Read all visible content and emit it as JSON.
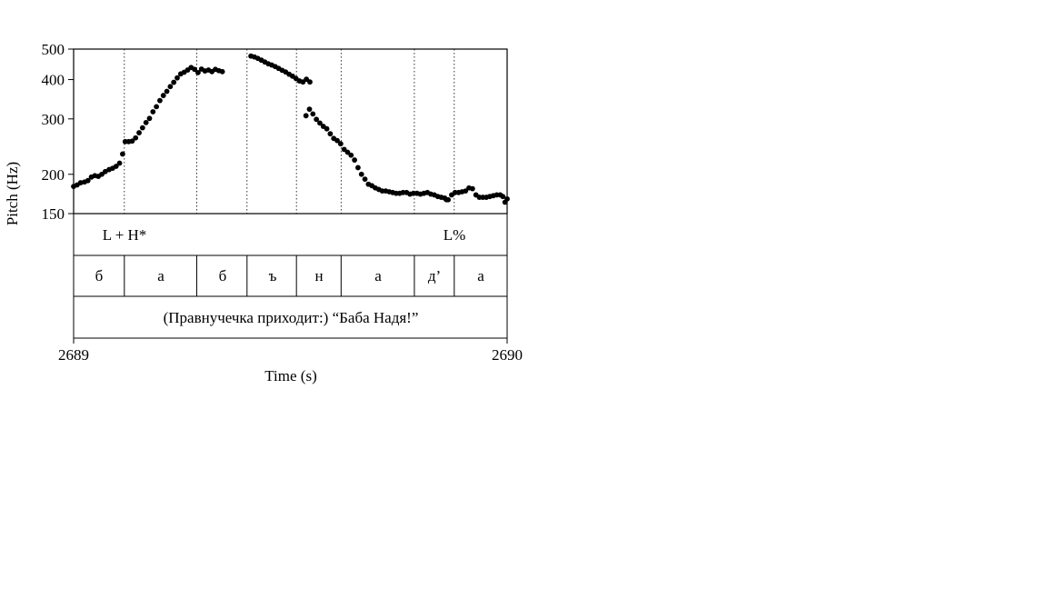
{
  "chart_data": {
    "type": "scatter",
    "xlabel": "Time (s)",
    "ylabel": "Pitch (Hz)",
    "xlim": [
      2689,
      2690
    ],
    "ylim": [
      150,
      500
    ],
    "y_scale": "log",
    "x_ticks": [
      "2689",
      "2690"
    ],
    "y_ticks": [
      150,
      200,
      300,
      400,
      500
    ],
    "y_tick_labels": [
      "150",
      "200",
      "300",
      "400",
      "500"
    ],
    "segment_boundaries": [
      2689.117,
      2689.284,
      2689.4,
      2689.514,
      2689.617,
      2689.786,
      2689.878
    ],
    "tiers": {
      "tones": [
        {
          "label": "L + H*",
          "t": 2689.117
        },
        {
          "label": "L%",
          "t": 2689.878
        }
      ],
      "segments": [
        {
          "label": "б",
          "start": 2689.0,
          "end": 2689.117
        },
        {
          "label": "а",
          "start": 2689.117,
          "end": 2689.284
        },
        {
          "label": "б",
          "start": 2689.284,
          "end": 2689.4
        },
        {
          "label": "ъ",
          "start": 2689.4,
          "end": 2689.514
        },
        {
          "label": "н",
          "start": 2689.514,
          "end": 2689.617
        },
        {
          "label": "а",
          "start": 2689.617,
          "end": 2689.786
        },
        {
          "label": "д’",
          "start": 2689.786,
          "end": 2689.878
        },
        {
          "label": "а",
          "start": 2689.878,
          "end": 2690.0
        }
      ],
      "sentence": "(Правнучечка приходит:) “Баба Надя!”"
    },
    "series": [
      {
        "points": [
          [
            2689.0,
            183
          ],
          [
            2689.008,
            185
          ],
          [
            2689.016,
            188
          ],
          [
            2689.025,
            189
          ],
          [
            2689.033,
            191
          ],
          [
            2689.041,
            196
          ],
          [
            2689.049,
            198
          ],
          [
            2689.057,
            197
          ],
          [
            2689.065,
            200
          ],
          [
            2689.073,
            204
          ],
          [
            2689.082,
            207
          ],
          [
            2689.09,
            209
          ],
          [
            2689.098,
            212
          ],
          [
            2689.106,
            217
          ],
          [
            2689.113,
            232
          ],
          [
            2689.119,
            254
          ],
          [
            2689.127,
            254
          ],
          [
            2689.135,
            255
          ],
          [
            2689.143,
            261
          ],
          [
            2689.151,
            271
          ],
          [
            2689.159,
            281
          ],
          [
            2689.167,
            292
          ],
          [
            2689.175,
            301
          ],
          [
            2689.183,
            316
          ],
          [
            2689.191,
            328
          ],
          [
            2689.199,
            343
          ],
          [
            2689.207,
            356
          ],
          [
            2689.215,
            367
          ],
          [
            2689.223,
            380
          ],
          [
            2689.231,
            392
          ],
          [
            2689.239,
            405
          ],
          [
            2689.247,
            417
          ],
          [
            2689.255,
            422
          ],
          [
            2689.263,
            429
          ],
          [
            2689.271,
            437
          ],
          [
            2689.279,
            431
          ],
          [
            2689.287,
            421
          ],
          [
            2689.295,
            432
          ],
          [
            2689.303,
            426
          ],
          [
            2689.311,
            429
          ],
          [
            2689.319,
            424
          ],
          [
            2689.327,
            431
          ],
          [
            2689.335,
            427
          ],
          [
            2689.343,
            424
          ],
          [
            2689.409,
            475
          ],
          [
            2689.417,
            472
          ],
          [
            2689.425,
            467
          ],
          [
            2689.433,
            461
          ],
          [
            2689.441,
            455
          ],
          [
            2689.449,
            449
          ],
          [
            2689.457,
            445
          ],
          [
            2689.465,
            440
          ],
          [
            2689.473,
            434
          ],
          [
            2689.481,
            428
          ],
          [
            2689.489,
            423
          ],
          [
            2689.497,
            416
          ],
          [
            2689.505,
            410
          ],
          [
            2689.513,
            403
          ],
          [
            2689.521,
            396
          ],
          [
            2689.529,
            393
          ],
          [
            2689.537,
            401
          ],
          [
            2689.545,
            393
          ],
          [
            2689.536,
            307
          ],
          [
            2689.544,
            322
          ],
          [
            2689.552,
            311
          ],
          [
            2689.56,
            299
          ],
          [
            2689.568,
            291
          ],
          [
            2689.576,
            284
          ],
          [
            2689.584,
            279
          ],
          [
            2689.592,
            269
          ],
          [
            2689.6,
            260
          ],
          [
            2689.608,
            256
          ],
          [
            2689.616,
            250
          ],
          [
            2689.624,
            240
          ],
          [
            2689.632,
            235
          ],
          [
            2689.64,
            230
          ],
          [
            2689.648,
            222
          ],
          [
            2689.656,
            210
          ],
          [
            2689.664,
            200
          ],
          [
            2689.672,
            193
          ],
          [
            2689.68,
            186
          ],
          [
            2689.688,
            184
          ],
          [
            2689.696,
            181
          ],
          [
            2689.704,
            179
          ],
          [
            2689.712,
            177
          ],
          [
            2689.72,
            177
          ],
          [
            2689.728,
            176
          ],
          [
            2689.736,
            175
          ],
          [
            2689.744,
            174
          ],
          [
            2689.752,
            174
          ],
          [
            2689.76,
            175
          ],
          [
            2689.768,
            175
          ],
          [
            2689.776,
            173
          ],
          [
            2689.784,
            174
          ],
          [
            2689.792,
            174
          ],
          [
            2689.8,
            173
          ],
          [
            2689.808,
            174
          ],
          [
            2689.816,
            175
          ],
          [
            2689.824,
            173
          ],
          [
            2689.832,
            172
          ],
          [
            2689.84,
            170
          ],
          [
            2689.848,
            169
          ],
          [
            2689.856,
            168
          ],
          [
            2689.86,
            166
          ],
          [
            2689.864,
            166
          ],
          [
            2689.872,
            172
          ],
          [
            2689.88,
            175
          ],
          [
            2689.888,
            175
          ],
          [
            2689.896,
            176
          ],
          [
            2689.904,
            177
          ],
          [
            2689.912,
            181
          ],
          [
            2689.92,
            180
          ],
          [
            2689.928,
            172
          ],
          [
            2689.936,
            169
          ],
          [
            2689.944,
            169
          ],
          [
            2689.952,
            169
          ],
          [
            2689.96,
            170
          ],
          [
            2689.968,
            171
          ],
          [
            2689.976,
            172
          ],
          [
            2689.984,
            172
          ],
          [
            2689.99,
            170
          ],
          [
            2689.995,
            163
          ],
          [
            2690.0,
            167
          ]
        ]
      }
    ]
  }
}
